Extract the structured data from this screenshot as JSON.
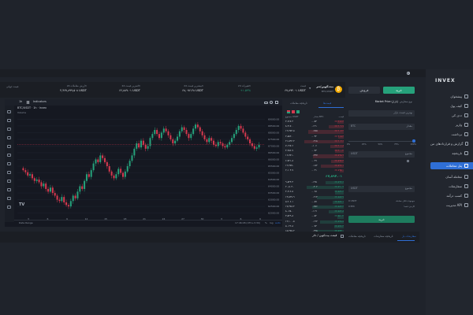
{
  "colors": {
    "accent": "#2f6fd6",
    "buy": "#26a17b",
    "sell": "#d6394f",
    "orange": "#f2a900",
    "chart_bg": "#151821"
  },
  "topbar": {
    "icon": "moon-icon"
  },
  "header": {
    "left_label": "قیمت جهانی",
    "stats": [
      {
        "label": "ارزش معاملات 24h",
        "value": "۲,۴۶۷,۸۹۹,۵۰۸ USDT"
      },
      {
        "label": "کمترین قیمت 24h",
        "value": "۶۶,۸۸۹.۰۱ USDT"
      },
      {
        "label": "بیشترین قیمت 24h",
        "value": "۶۸,۰۷۶.۲۸ USDT"
      },
      {
        "label": "تغییرات 24h",
        "value": "+۱.۵۳%"
      },
      {
        "label": "قیمت",
        "value": "۶۷,۸۹۴.۰۱ USDT"
      }
    ],
    "pair": {
      "name": "بیت‌کوین/تتر",
      "symbol": "BTC/USDT"
    }
  },
  "chart": {
    "toolbar": {
      "interval": "1h",
      "indicators": "Indicators"
    },
    "legend": "BTC/USDT · 1h · Invex",
    "vol_label": "Volume",
    "logo": "TV",
    "footer_left": "Date Range",
    "footer_right": "17:46:08 (UTC+3:30)",
    "footer_opts": [
      "%",
      "log",
      "auto"
    ]
  },
  "chart_data": {
    "type": "candlestick",
    "x_ticks": [
      "3",
      "6",
      "9",
      "12",
      "15",
      "18",
      "21",
      "24",
      "27",
      "30",
      "3",
      "6",
      "9"
    ],
    "y_ticks": [
      "69000.00",
      "68500.00",
      "68000.00",
      "67500.00",
      "67000.00",
      "66500.00",
      "66000.00",
      "65500.00",
      "65000.00",
      "64500.00",
      "64000.00",
      "63500.00",
      "63000.00",
      "62500.00",
      "62000.00"
    ],
    "ylim": [
      61800,
      69200
    ],
    "closes": [
      65200,
      65050,
      64800,
      64900,
      64600,
      64400,
      64500,
      64300,
      64000,
      64200,
      63800,
      63600,
      63900,
      63500,
      63300,
      63000,
      62900,
      63200,
      62800,
      62600,
      62500,
      62900,
      63300,
      63100,
      63600,
      64000,
      63800,
      64400,
      64900,
      64700,
      65200,
      65700,
      66000,
      65800,
      66300,
      66100,
      65800,
      65500,
      65100,
      64800,
      64600,
      64900,
      65300,
      65000,
      64700,
      65100,
      65500,
      65900,
      66300,
      66800,
      67200,
      66900,
      67400,
      67100,
      66800,
      67000,
      67600,
      67900,
      68200,
      67900,
      67600,
      68000,
      68300,
      68100,
      67800,
      67500,
      67200,
      67400,
      67700,
      68100,
      68400,
      68200,
      67900,
      67600,
      67900,
      68300,
      68600,
      68400,
      68100,
      67800,
      67500,
      67300,
      67600,
      67400,
      67100,
      67000,
      67300,
      67200,
      67000,
      66900,
      67100,
      67300,
      67600,
      67900,
      68200,
      68500,
      68300,
      68000,
      67700,
      67500,
      67200,
      67000,
      66800,
      66900,
      67100
    ]
  },
  "orderbook": {
    "tabs": [
      "قیمت‌ها",
      "تاریخچه معاملات"
    ],
    "headers": [
      "قیمت",
      "مقدار BTC",
      "مجموع USDT"
    ],
    "mid_price": "۶۷,۸۹۴.۰۱",
    "asks": [
      [
        "۶۷,۹۱۲.۴",
        "۰.۰۵۴",
        "۳,۶۶۷.۳"
      ],
      [
        "۶۷,۹۰۹.۷",
        "۰.۱۲۱",
        "۸,۲۱۷.۰"
      ],
      [
        "۶۷,۹۰۷.۲",
        "۰.۲۸۵",
        "۱۹,۳۵۳.۵"
      ],
      [
        "۶۷,۹۰۵.۳",
        "۰.۰۴۲",
        "۲,۸۵۲.۰"
      ],
      [
        "۶۷,۹۰۳.۶",
        "۰.۳۱۸",
        "۲۱,۵۹۳.۳"
      ],
      [
        "۶۷,۹۰۱.۸",
        "۰.۱۰۶",
        "۷,۱۹۷.۶"
      ],
      [
        "۶۷,۹۰۰.۲",
        "۰.۰۷۳",
        "۴,۹۵۶.۷"
      ],
      [
        "۶۷,۸۹۸.۹",
        "۰.۲۴۷",
        "۱۶,۷۷۱.۰"
      ],
      [
        "۶۷,۸۹۷.۴",
        "۰.۰۹۹",
        "۶,۷۲۱.۸"
      ],
      [
        "۶۷,۸۹۶.۱",
        "۰.۱۸۲",
        "۱۲,۳۵۷.۰"
      ],
      [
        "۶۷,۸۹۵.۰",
        "۰.۰۳۱",
        "۲,۱۰۴.۷"
      ]
    ],
    "bids": [
      [
        "۶۷,۸۹۲.۶",
        "۰.۱۴۵",
        "۹,۸۴۴.۴"
      ],
      [
        "۶۷,۸۹۰.۹",
        "۰.۳۰۲",
        "۲۰,۵۰۳.۰"
      ],
      [
        "۶۷,۸۸۹.۳",
        "۰.۰۶۸",
        "۴,۶۱۶.۵"
      ],
      [
        "۶۷,۸۸۷.۷",
        "۰.۲۱۴",
        "۱۴,۵۲۷.۹"
      ],
      [
        "۶۷,۸۸۶.۱",
        "۰.۰۸۷",
        "۵,۹۰۶.۱"
      ],
      [
        "۶۷,۸۸۴.۴",
        "۰.۲۵۶",
        "۱۷,۳۷۸.۴"
      ],
      [
        "۶۷,۸۸۲.۸",
        "۰.۱۱۹",
        "۸,۰۷۸.۰"
      ],
      [
        "۶۷,۸۸۰.۲",
        "۰.۰۵۲",
        "۳,۵۲۹.۸"
      ],
      [
        "۶۷,۸۷۸.۵",
        "۰.۱۹۳",
        "۱۳,۱۰۰.۵"
      ],
      [
        "۶۷,۸۷۶.۳",
        "۰.۰۷۴",
        "۵,۰۲۲.۸"
      ],
      [
        "۶۷,۸۷۴.۰",
        "۰.۲۲۸",
        "۱۵,۴۷۵.۳"
      ]
    ]
  },
  "trade": {
    "buy_label": "خرید",
    "sell_label": "فروش",
    "order_type": "Market Price (بازار)",
    "order_type_label": "نوع سفارش",
    "price_field": "بهترین قیمت بازار",
    "amount_label": "مقدار",
    "amount_unit": "BTC",
    "slider_marks": [
      "0%",
      "25%",
      "50%",
      "75%",
      "100%"
    ],
    "total_label": "مجموع",
    "total_unit": "USDT",
    "available_label": "موجودی قابل معامله",
    "available_value": "0 USDT",
    "fee_label": "کارمزد شما",
    "fee_value": "0 BTC",
    "submit_label": "خرید"
  },
  "sidebar": {
    "logo": "INVEX",
    "items": [
      {
        "label": "پیشخوان",
        "icon": "dashboard-icon"
      },
      {
        "label": "کیف پول",
        "icon": "wallet-icon"
      },
      {
        "label": "ددی کی",
        "icon": "gift-icon"
      },
      {
        "label": "واریز",
        "icon": "deposit-icon"
      },
      {
        "label": "برداشت",
        "icon": "withdraw-icon"
      },
      {
        "label": "گزارش و قراردادهای من",
        "icon": "report-icon"
      },
      {
        "label": "تاریخچه",
        "icon": "history-icon"
      },
      {
        "label": "پنل معاملات",
        "icon": "trade-icon"
      },
      {
        "label": "معامله آسان",
        "icon": "swap-icon"
      },
      {
        "label": "سفارشات",
        "icon": "orders-icon"
      },
      {
        "label": "کسب درآمد",
        "icon": "earn-icon"
      },
      {
        "label": "مدیریت API",
        "icon": "api-icon"
      }
    ],
    "active_index": 7
  },
  "bottom": {
    "title": "قیمت بیت‌کوین / دلار",
    "tabs": [
      "سفارشات باز",
      "تاریخچه سفارشات",
      "تاریخچه معاملات"
    ]
  }
}
